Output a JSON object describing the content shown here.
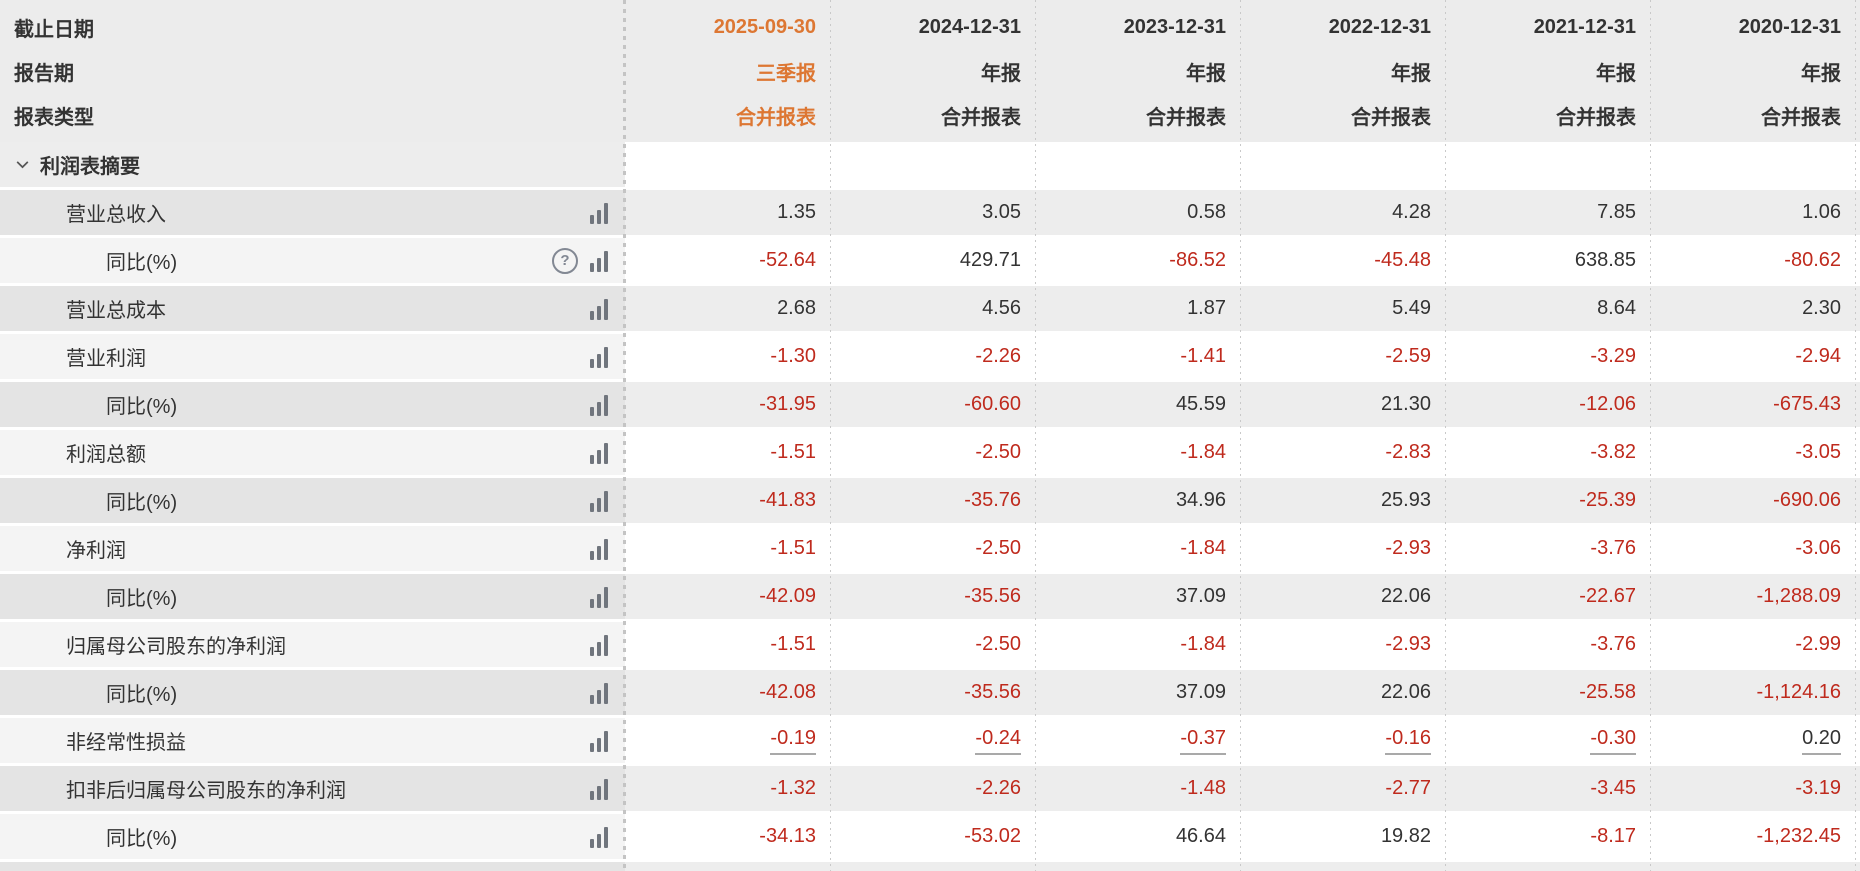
{
  "colors": {
    "accent_orange": "#dd7733",
    "negative_red": "#bf2a1d",
    "text_dark": "#333333",
    "row_alt_bg": "#ededed",
    "header_bg": "#ececec"
  },
  "icons": {
    "row_chart": "bar-chart-icon",
    "help": "help-circle-icon",
    "help_glyph": "?",
    "section_chevron": "chevron-down-icon"
  },
  "header": {
    "row_labels": {
      "date": "截止日期",
      "period": "报告期",
      "type": "报表类型"
    },
    "columns": [
      {
        "date": "2025-09-30",
        "period": "三季报",
        "type": "合并报表",
        "highlight": true
      },
      {
        "date": "2024-12-31",
        "period": "年报",
        "type": "合并报表",
        "highlight": false
      },
      {
        "date": "2023-12-31",
        "period": "年报",
        "type": "合并报表",
        "highlight": false
      },
      {
        "date": "2022-12-31",
        "period": "年报",
        "type": "合并报表",
        "highlight": false
      },
      {
        "date": "2021-12-31",
        "period": "年报",
        "type": "合并报表",
        "highlight": false
      },
      {
        "date": "2020-12-31",
        "period": "年报",
        "type": "合并报表",
        "highlight": false
      }
    ]
  },
  "section": {
    "title": "利润表摘要"
  },
  "rows": [
    {
      "label": "营业总收入",
      "level": 1,
      "help": false,
      "underline": false,
      "values": [
        "1.35",
        "3.05",
        "0.58",
        "4.28",
        "7.85",
        "1.06"
      ]
    },
    {
      "label": "同比(%)",
      "level": 2,
      "help": true,
      "underline": false,
      "values": [
        "-52.64",
        "429.71",
        "-86.52",
        "-45.48",
        "638.85",
        "-80.62"
      ]
    },
    {
      "label": "营业总成本",
      "level": 1,
      "help": false,
      "underline": false,
      "values": [
        "2.68",
        "4.56",
        "1.87",
        "5.49",
        "8.64",
        "2.30"
      ]
    },
    {
      "label": "营业利润",
      "level": 1,
      "help": false,
      "underline": false,
      "values": [
        "-1.30",
        "-2.26",
        "-1.41",
        "-2.59",
        "-3.29",
        "-2.94"
      ]
    },
    {
      "label": "同比(%)",
      "level": 2,
      "help": false,
      "underline": false,
      "values": [
        "-31.95",
        "-60.60",
        "45.59",
        "21.30",
        "-12.06",
        "-675.43"
      ]
    },
    {
      "label": "利润总额",
      "level": 1,
      "help": false,
      "underline": false,
      "values": [
        "-1.51",
        "-2.50",
        "-1.84",
        "-2.83",
        "-3.82",
        "-3.05"
      ]
    },
    {
      "label": "同比(%)",
      "level": 2,
      "help": false,
      "underline": false,
      "values": [
        "-41.83",
        "-35.76",
        "34.96",
        "25.93",
        "-25.39",
        "-690.06"
      ]
    },
    {
      "label": "净利润",
      "level": 1,
      "help": false,
      "underline": false,
      "values": [
        "-1.51",
        "-2.50",
        "-1.84",
        "-2.93",
        "-3.76",
        "-3.06"
      ]
    },
    {
      "label": "同比(%)",
      "level": 2,
      "help": false,
      "underline": false,
      "values": [
        "-42.09",
        "-35.56",
        "37.09",
        "22.06",
        "-22.67",
        "-1,288.09"
      ]
    },
    {
      "label": "归属母公司股东的净利润",
      "level": 1,
      "help": false,
      "underline": false,
      "values": [
        "-1.51",
        "-2.50",
        "-1.84",
        "-2.93",
        "-3.76",
        "-2.99"
      ]
    },
    {
      "label": "同比(%)",
      "level": 2,
      "help": false,
      "underline": false,
      "values": [
        "-42.08",
        "-35.56",
        "37.09",
        "22.06",
        "-25.58",
        "-1,124.16"
      ]
    },
    {
      "label": "非经常性损益",
      "level": 1,
      "help": false,
      "underline": true,
      "values": [
        "-0.19",
        "-0.24",
        "-0.37",
        "-0.16",
        "-0.30",
        "0.20"
      ]
    },
    {
      "label": "扣非后归属母公司股东的净利润",
      "level": 1,
      "help": false,
      "underline": false,
      "values": [
        "-1.32",
        "-2.26",
        "-1.48",
        "-2.77",
        "-3.45",
        "-3.19"
      ]
    },
    {
      "label": "同比(%)",
      "level": 2,
      "help": false,
      "underline": false,
      "values": [
        "-34.13",
        "-53.02",
        "46.64",
        "19.82",
        "-8.17",
        "-1,232.45"
      ]
    }
  ]
}
